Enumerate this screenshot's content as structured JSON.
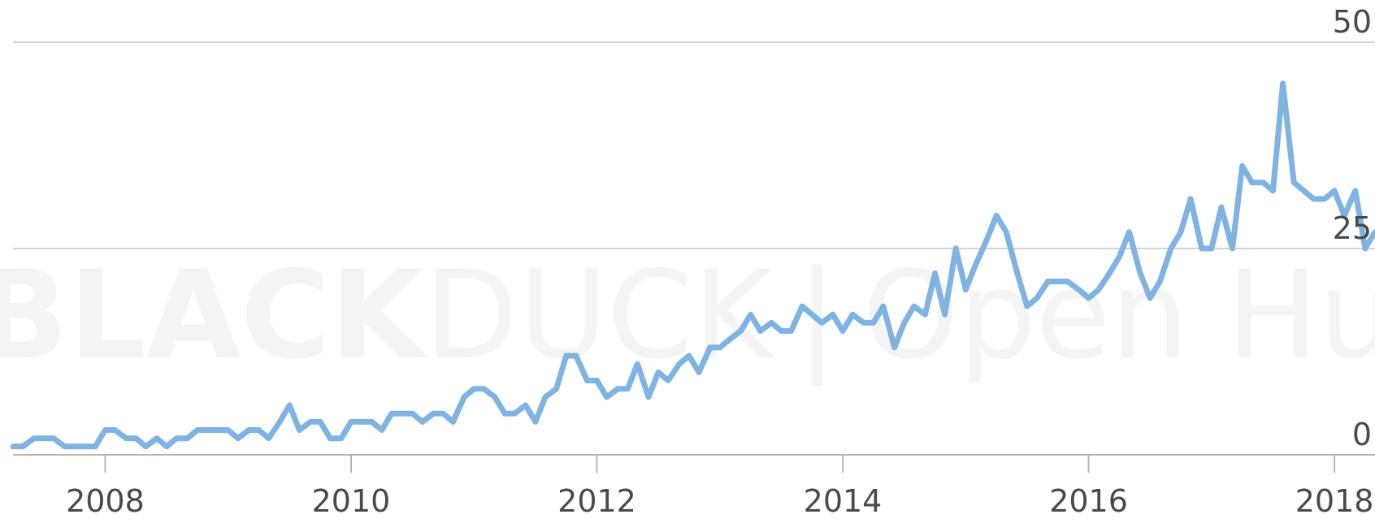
{
  "watermark": {
    "brand_bold": "BLACK",
    "brand_light": "DUCK",
    "separator": "|",
    "product": "Open Hub"
  },
  "colors": {
    "line": "#7fb3e1",
    "grid": "#d3d3d3",
    "axis": "#b5b5b5",
    "text": "#4a4a4a",
    "watermark": "#f4f4f4"
  },
  "chart_data": {
    "type": "line",
    "title": "",
    "xlabel": "",
    "ylabel": "",
    "xlim": [
      2007.25,
      2018.33
    ],
    "ylim": [
      0,
      50
    ],
    "yticks": [
      0,
      25,
      50
    ],
    "xticks": [
      2008,
      2010,
      2012,
      2014,
      2016,
      2018
    ],
    "grid": true,
    "legend": "none",
    "series": [
      {
        "values": [
          {
            "x": 2007.25,
            "y": 1
          },
          {
            "x": 2007.33,
            "y": 1
          },
          {
            "x": 2007.42,
            "y": 2
          },
          {
            "x": 2007.5,
            "y": 2
          },
          {
            "x": 2007.58,
            "y": 2
          },
          {
            "x": 2007.67,
            "y": 1
          },
          {
            "x": 2007.75,
            "y": 1
          },
          {
            "x": 2007.83,
            "y": 1
          },
          {
            "x": 2007.92,
            "y": 1
          },
          {
            "x": 2008.0,
            "y": 3
          },
          {
            "x": 2008.08,
            "y": 3
          },
          {
            "x": 2008.17,
            "y": 2
          },
          {
            "x": 2008.25,
            "y": 2
          },
          {
            "x": 2008.33,
            "y": 1
          },
          {
            "x": 2008.42,
            "y": 2
          },
          {
            "x": 2008.5,
            "y": 1
          },
          {
            "x": 2008.58,
            "y": 2
          },
          {
            "x": 2008.67,
            "y": 2
          },
          {
            "x": 2008.75,
            "y": 3
          },
          {
            "x": 2008.83,
            "y": 3
          },
          {
            "x": 2008.92,
            "y": 3
          },
          {
            "x": 2009.0,
            "y": 3
          },
          {
            "x": 2009.08,
            "y": 2
          },
          {
            "x": 2009.17,
            "y": 3
          },
          {
            "x": 2009.25,
            "y": 3
          },
          {
            "x": 2009.33,
            "y": 2
          },
          {
            "x": 2009.42,
            "y": 4
          },
          {
            "x": 2009.5,
            "y": 6
          },
          {
            "x": 2009.58,
            "y": 3
          },
          {
            "x": 2009.67,
            "y": 4
          },
          {
            "x": 2009.75,
            "y": 4
          },
          {
            "x": 2009.83,
            "y": 2
          },
          {
            "x": 2009.92,
            "y": 2
          },
          {
            "x": 2010.0,
            "y": 4
          },
          {
            "x": 2010.08,
            "y": 4
          },
          {
            "x": 2010.17,
            "y": 4
          },
          {
            "x": 2010.25,
            "y": 3
          },
          {
            "x": 2010.33,
            "y": 5
          },
          {
            "x": 2010.42,
            "y": 5
          },
          {
            "x": 2010.5,
            "y": 5
          },
          {
            "x": 2010.58,
            "y": 4
          },
          {
            "x": 2010.67,
            "y": 5
          },
          {
            "x": 2010.75,
            "y": 5
          },
          {
            "x": 2010.83,
            "y": 4
          },
          {
            "x": 2010.92,
            "y": 7
          },
          {
            "x": 2011.0,
            "y": 8
          },
          {
            "x": 2011.08,
            "y": 8
          },
          {
            "x": 2011.17,
            "y": 7
          },
          {
            "x": 2011.25,
            "y": 5
          },
          {
            "x": 2011.33,
            "y": 5
          },
          {
            "x": 2011.42,
            "y": 6
          },
          {
            "x": 2011.5,
            "y": 4
          },
          {
            "x": 2011.58,
            "y": 7
          },
          {
            "x": 2011.67,
            "y": 8
          },
          {
            "x": 2011.75,
            "y": 12
          },
          {
            "x": 2011.83,
            "y": 12
          },
          {
            "x": 2011.92,
            "y": 9
          },
          {
            "x": 2012.0,
            "y": 9
          },
          {
            "x": 2012.08,
            "y": 7
          },
          {
            "x": 2012.17,
            "y": 8
          },
          {
            "x": 2012.25,
            "y": 8
          },
          {
            "x": 2012.33,
            "y": 11
          },
          {
            "x": 2012.42,
            "y": 7
          },
          {
            "x": 2012.5,
            "y": 10
          },
          {
            "x": 2012.58,
            "y": 9
          },
          {
            "x": 2012.67,
            "y": 11
          },
          {
            "x": 2012.75,
            "y": 12
          },
          {
            "x": 2012.83,
            "y": 10
          },
          {
            "x": 2012.92,
            "y": 13
          },
          {
            "x": 2013.0,
            "y": 13
          },
          {
            "x": 2013.08,
            "y": 14
          },
          {
            "x": 2013.17,
            "y": 15
          },
          {
            "x": 2013.25,
            "y": 17
          },
          {
            "x": 2013.33,
            "y": 15
          },
          {
            "x": 2013.42,
            "y": 16
          },
          {
            "x": 2013.5,
            "y": 15
          },
          {
            "x": 2013.58,
            "y": 15
          },
          {
            "x": 2013.67,
            "y": 18
          },
          {
            "x": 2013.75,
            "y": 17
          },
          {
            "x": 2013.83,
            "y": 16
          },
          {
            "x": 2013.92,
            "y": 17
          },
          {
            "x": 2014.0,
            "y": 15
          },
          {
            "x": 2014.08,
            "y": 17
          },
          {
            "x": 2014.17,
            "y": 16
          },
          {
            "x": 2014.25,
            "y": 16
          },
          {
            "x": 2014.33,
            "y": 18
          },
          {
            "x": 2014.42,
            "y": 13
          },
          {
            "x": 2014.5,
            "y": 16
          },
          {
            "x": 2014.58,
            "y": 18
          },
          {
            "x": 2014.67,
            "y": 17
          },
          {
            "x": 2014.75,
            "y": 22
          },
          {
            "x": 2014.83,
            "y": 17
          },
          {
            "x": 2014.92,
            "y": 25
          },
          {
            "x": 2015.0,
            "y": 20
          },
          {
            "x": 2015.08,
            "y": 23
          },
          {
            "x": 2015.17,
            "y": 26
          },
          {
            "x": 2015.25,
            "y": 29
          },
          {
            "x": 2015.33,
            "y": 27
          },
          {
            "x": 2015.42,
            "y": 22
          },
          {
            "x": 2015.5,
            "y": 18
          },
          {
            "x": 2015.58,
            "y": 19
          },
          {
            "x": 2015.67,
            "y": 21
          },
          {
            "x": 2015.75,
            "y": 21
          },
          {
            "x": 2015.83,
            "y": 21
          },
          {
            "x": 2015.92,
            "y": 20
          },
          {
            "x": 2016.0,
            "y": 19
          },
          {
            "x": 2016.08,
            "y": 20
          },
          {
            "x": 2016.17,
            "y": 22
          },
          {
            "x": 2016.25,
            "y": 24
          },
          {
            "x": 2016.33,
            "y": 27
          },
          {
            "x": 2016.42,
            "y": 22
          },
          {
            "x": 2016.5,
            "y": 19
          },
          {
            "x": 2016.58,
            "y": 21
          },
          {
            "x": 2016.67,
            "y": 25
          },
          {
            "x": 2016.75,
            "y": 27
          },
          {
            "x": 2016.83,
            "y": 31
          },
          {
            "x": 2016.92,
            "y": 25
          },
          {
            "x": 2017.0,
            "y": 25
          },
          {
            "x": 2017.08,
            "y": 30
          },
          {
            "x": 2017.17,
            "y": 25
          },
          {
            "x": 2017.25,
            "y": 35
          },
          {
            "x": 2017.33,
            "y": 33
          },
          {
            "x": 2017.42,
            "y": 33
          },
          {
            "x": 2017.5,
            "y": 32
          },
          {
            "x": 2017.58,
            "y": 45
          },
          {
            "x": 2017.67,
            "y": 33
          },
          {
            "x": 2017.75,
            "y": 32
          },
          {
            "x": 2017.83,
            "y": 31
          },
          {
            "x": 2017.92,
            "y": 31
          },
          {
            "x": 2018.0,
            "y": 32
          },
          {
            "x": 2018.08,
            "y": 29
          },
          {
            "x": 2018.17,
            "y": 32
          },
          {
            "x": 2018.25,
            "y": 25
          },
          {
            "x": 2018.33,
            "y": 27
          }
        ]
      }
    ]
  }
}
